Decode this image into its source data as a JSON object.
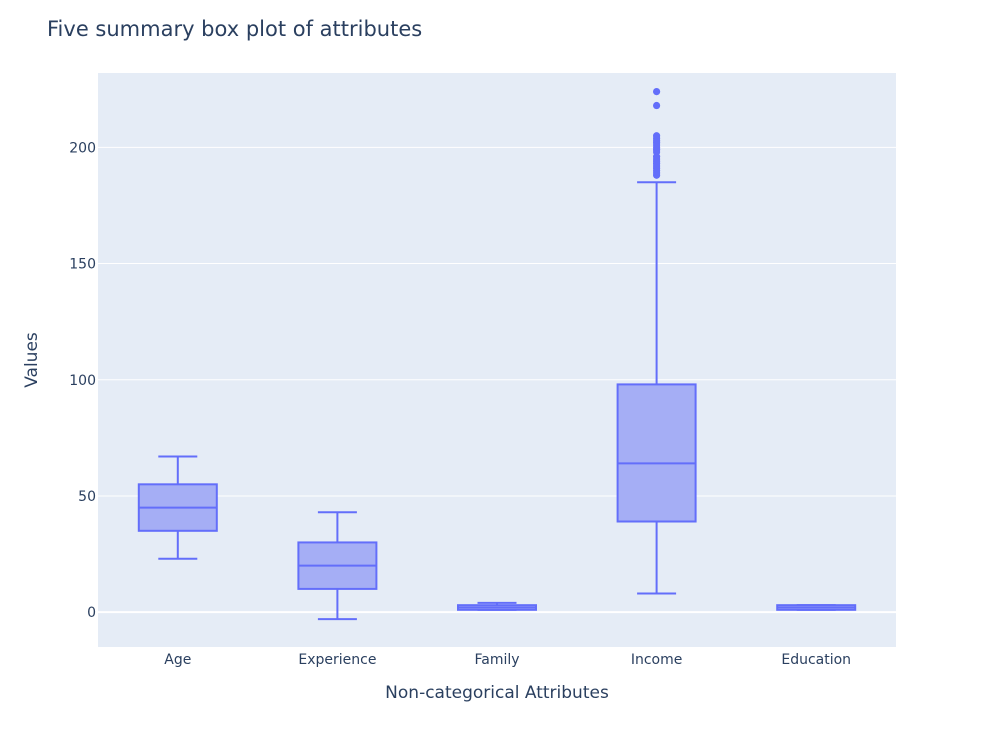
{
  "chart_data": {
    "type": "box",
    "title": "Five summary box plot of attributes",
    "xlabel": "Non-categorical Attributes",
    "ylabel": "Values",
    "ylim": [
      -15,
      232
    ],
    "yticks": [
      0,
      50,
      100,
      150,
      200
    ],
    "grid": true,
    "legend": "none",
    "colors": {
      "box": "#636efa",
      "fill": "#a5aef5",
      "plot_bg": "#e5ecf6",
      "grid": "#ffffff",
      "text": "#2a3f5f"
    },
    "categories": [
      "Age",
      "Experience",
      "Family",
      "Income",
      "Education"
    ],
    "boxes": [
      {
        "name": "Age",
        "min": 23,
        "q1": 35,
        "median": 45,
        "q3": 55,
        "max": 67,
        "outliers": []
      },
      {
        "name": "Experience",
        "min": -3,
        "q1": 10,
        "median": 20,
        "q3": 30,
        "max": 43,
        "outliers": []
      },
      {
        "name": "Family",
        "min": 1,
        "q1": 1,
        "median": 2,
        "q3": 3,
        "max": 4,
        "outliers": []
      },
      {
        "name": "Income",
        "min": 8,
        "q1": 39,
        "median": 64,
        "q3": 98,
        "max": 185,
        "outliers": [
          188,
          189,
          190,
          191,
          192,
          193,
          194,
          195,
          196,
          198,
          199,
          200,
          201,
          202,
          203,
          204,
          205,
          218,
          224
        ]
      },
      {
        "name": "Education",
        "min": 1,
        "q1": 1,
        "median": 2,
        "q3": 3,
        "max": 3,
        "outliers": []
      }
    ]
  }
}
